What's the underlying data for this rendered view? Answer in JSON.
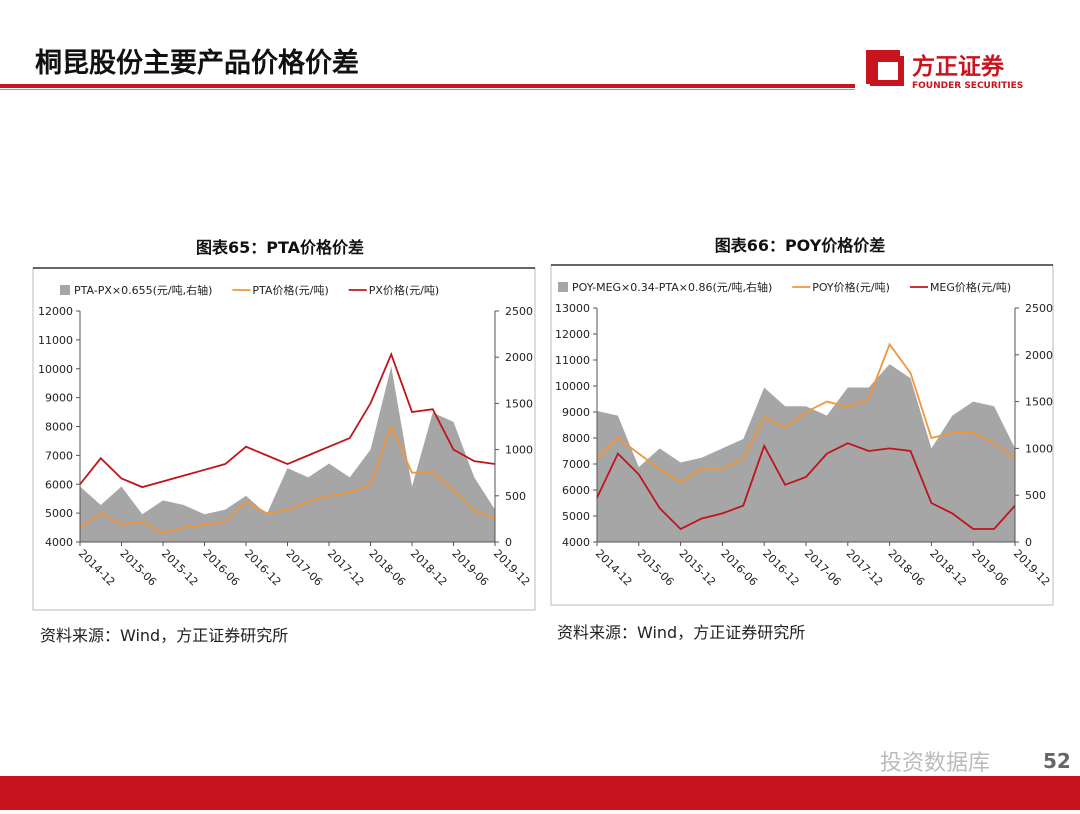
{
  "header": {
    "title": "桐昆股份主要产品价格价差",
    "logo": "方正证券",
    "logo_en": "FOUNDER SECURITIES"
  },
  "page_number": "52",
  "watermark": "投资数据库",
  "chart_data": [
    {
      "type": "line",
      "title": "图表65：PTA价格价差",
      "source": "资料来源：Wind，方正证券研究所",
      "categories": [
        "2014-12",
        null,
        "2015-06",
        null,
        "2015-12",
        null,
        "2016-06",
        null,
        "2016-12",
        null,
        "2017-06",
        null,
        "2017-12",
        null,
        "2018-06",
        null,
        "2018-12",
        null,
        "2019-06",
        null,
        "2019-12"
      ],
      "series": [
        {
          "name": "PTA-PX×0.655(元/吨,右轴)",
          "type": "area",
          "axis": "y2",
          "color": "#a6a6a6",
          "values": [
            600,
            400,
            600,
            300,
            450,
            400,
            300,
            350,
            500,
            300,
            800,
            700,
            850,
            700,
            1000,
            1900,
            600,
            1400,
            1300,
            700,
            350
          ]
        },
        {
          "name": "PTA价格(元/吨)",
          "type": "line",
          "color": "#f0963c",
          "values": [
            4500,
            5000,
            4600,
            4700,
            4300,
            4500,
            4600,
            4700,
            5400,
            5000,
            5100,
            5400,
            5600,
            5700,
            6000,
            8000,
            6400,
            6400,
            5800,
            5100,
            4800
          ]
        },
        {
          "name": "PX价格(元/吨)",
          "type": "line",
          "color": "#c0141c",
          "values": [
            6000,
            6900,
            6200,
            5900,
            6100,
            6300,
            6500,
            6700,
            7300,
            7000,
            6700,
            7000,
            7300,
            7600,
            8800,
            10500,
            8500,
            8600,
            7200,
            6800,
            6700
          ]
        }
      ],
      "ylim": [
        4000,
        12000
      ],
      "yticks": [
        4000,
        5000,
        6000,
        7000,
        8000,
        9000,
        10000,
        11000,
        12000
      ],
      "y2lim": [
        0,
        2500
      ],
      "y2ticks": [
        0,
        500,
        1000,
        1500,
        2000,
        2500
      ]
    },
    {
      "type": "line",
      "title": "图表66：POY价格价差",
      "source": "资料来源：Wind，方正证券研究所",
      "categories": [
        "2014-12",
        null,
        "2015-06",
        null,
        "2015-12",
        null,
        "2016-06",
        null,
        "2016-12",
        null,
        "2017-06",
        null,
        "2017-12",
        null,
        "2018-06",
        null,
        "2018-12",
        null,
        "2019-06",
        null,
        "2019-12"
      ],
      "series": [
        {
          "name": "POY-MEG×0.34-PTA×0.86(元/吨,右轴)",
          "type": "area",
          "axis": "y2",
          "color": "#a6a6a6",
          "values": [
            1400,
            1350,
            800,
            1000,
            850,
            900,
            1000,
            1100,
            1650,
            1450,
            1450,
            1350,
            1650,
            1650,
            1900,
            1750,
            1000,
            1350,
            1500,
            1450,
            1000
          ]
        },
        {
          "name": "POY价格(元/吨)",
          "type": "line",
          "color": "#f0963c",
          "values": [
            7200,
            8000,
            7400,
            6800,
            6300,
            6800,
            6800,
            7200,
            8800,
            8400,
            9000,
            9400,
            9200,
            9500,
            11600,
            10500,
            8000,
            8200,
            8200,
            7800,
            7200
          ]
        },
        {
          "name": "MEG价格(元/吨)",
          "type": "line",
          "color": "#c0141c",
          "values": [
            5700,
            7400,
            6600,
            5300,
            4500,
            4900,
            5100,
            5400,
            7700,
            6200,
            6500,
            7400,
            7800,
            7500,
            7600,
            7500,
            5500,
            5100,
            4500,
            4500,
            5400
          ]
        }
      ],
      "ylim": [
        4000,
        13000
      ],
      "yticks": [
        4000,
        5000,
        6000,
        7000,
        8000,
        9000,
        10000,
        11000,
        12000,
        13000
      ],
      "y2lim": [
        0,
        2500
      ],
      "y2ticks": [
        0,
        500,
        1000,
        1500,
        2000,
        2500
      ]
    }
  ]
}
